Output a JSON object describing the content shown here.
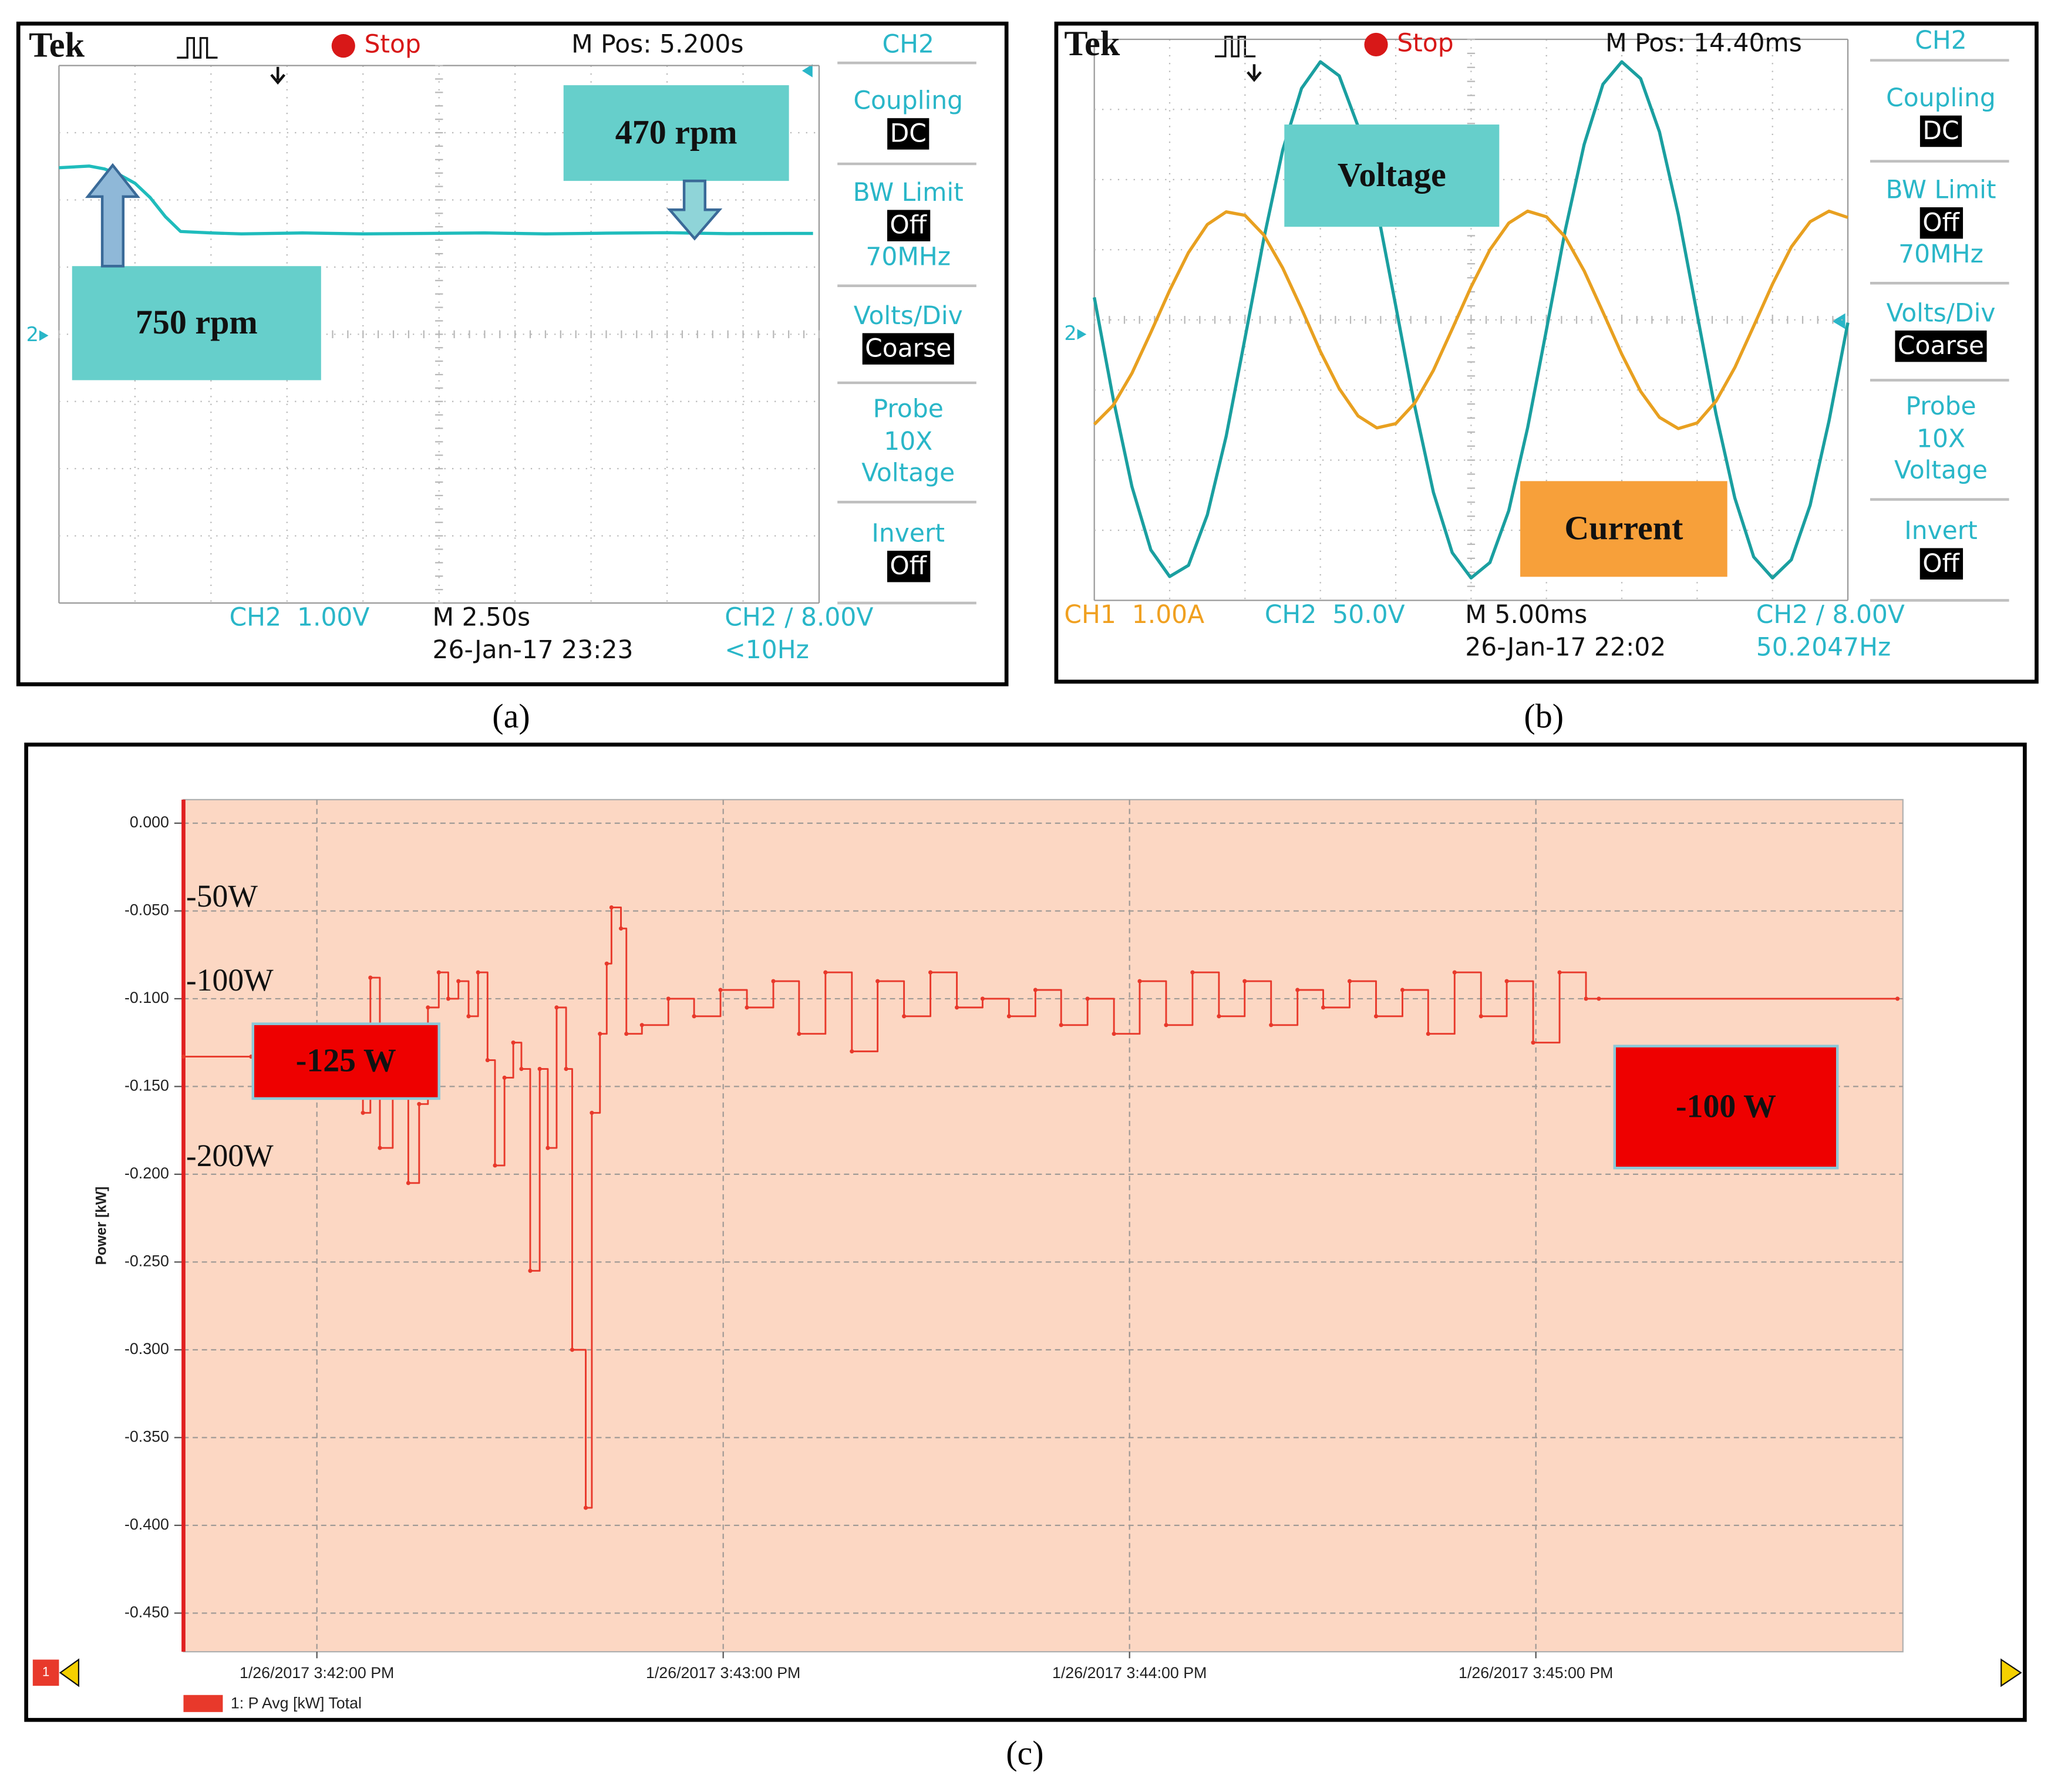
{
  "chart_data": [
    {
      "type": "line",
      "scope": {
        "brand": "Tek",
        "status": "Stop",
        "position": "M Pos: 5.200s",
        "menu": {
          "header": "CH2",
          "items": [
            {
              "label": "Coupling",
              "value": "DC",
              "boxed": true
            },
            {
              "label": "BW Limit",
              "value": "Off",
              "boxed": true,
              "extra": "70MHz"
            },
            {
              "label": "Volts/Div",
              "value": "Coarse",
              "boxed": true
            },
            {
              "label": "Probe",
              "value": "10X",
              "boxed": false,
              "extra": "Voltage"
            },
            {
              "label": "Invert",
              "value": "Off",
              "boxed": true
            }
          ]
        },
        "ground_marker": "2",
        "readouts": [
          {
            "text": "CH2  1.00V",
            "color": "#29b6c8"
          },
          {
            "text": "M 2.50s",
            "color": "#111111"
          },
          {
            "text": "CH2 ∕ 8.00V",
            "color": "#29b6c8"
          },
          {
            "text": "26-Jan-17 23:23",
            "color": "#111111"
          },
          {
            "text": "<10Hz",
            "color": "#29b6c8"
          }
        ]
      },
      "x": [
        0,
        1,
        1.5,
        2,
        2.5,
        3,
        3.5,
        4,
        5,
        6,
        8,
        10,
        12,
        14,
        16,
        18,
        20,
        22,
        24,
        24.8
      ],
      "xlim": [
        0,
        25
      ],
      "ylim": [
        -1078,
        1173
      ],
      "series": [
        {
          "color": "#1fbcbc",
          "values": [
            745,
            752,
            740,
            715,
            680,
            620,
            540,
            478,
            472,
            468,
            472,
            468,
            470,
            472,
            468,
            471,
            473,
            469,
            470,
            470
          ]
        }
      ],
      "annotations": [
        "750 rpm",
        "470 rpm"
      ],
      "annotation_color": "#66cfcb"
    },
    {
      "type": "line",
      "scope": {
        "brand": "Tek",
        "status": "Stop",
        "position": "M Pos: 14.40ms",
        "menu": {
          "header": "CH2",
          "items": [
            {
              "label": "Coupling",
              "value": "DC",
              "boxed": true
            },
            {
              "label": "BW Limit",
              "value": "Off",
              "boxed": true,
              "extra": "70MHz"
            },
            {
              "label": "Volts/Div",
              "value": "Coarse",
              "boxed": true
            },
            {
              "label": "Probe",
              "value": "10X",
              "boxed": false,
              "extra": "Voltage"
            },
            {
              "label": "Invert",
              "value": "Off",
              "boxed": true
            }
          ]
        },
        "ground_marker": "2",
        "readouts": [
          {
            "text": "CH1  1.00A",
            "color": "#f0a020"
          },
          {
            "text": "CH2  50.0V",
            "color": "#29b6c8"
          },
          {
            "text": "M 5.00ms",
            "color": "#111111"
          },
          {
            "text": "CH2 ∕ 8.00V",
            "color": "#29b6c8"
          },
          {
            "text": "26-Jan-17 22:02",
            "color": "#111111"
          },
          {
            "text": "50.2047Hz",
            "color": "#29b6c8"
          }
        ]
      },
      "x": [
        0,
        1.25,
        2.5,
        3.75,
        5,
        6.25,
        7.5,
        8.75,
        10,
        11.25,
        12.5,
        13.75,
        15,
        16.25,
        17.5,
        18.75,
        20,
        21.25,
        22.5,
        23.75,
        25,
        26.25,
        27.5,
        28.75,
        30,
        31.25,
        32.5,
        33.75,
        35,
        36.25,
        37.5,
        38.75,
        40,
        41.25,
        42.5,
        43.75,
        45,
        46.25,
        47.5,
        48.75,
        50
      ],
      "xlim": [
        0,
        50
      ],
      "ylim": [
        -200,
        200
      ],
      "y2lim": [
        -4,
        4
      ],
      "series": [
        {
          "name": "Voltage",
          "color": "#1a9fa0",
          "box_color": "#66cfcb",
          "values": [
            16,
            -56,
            -119,
            -164,
            -183,
            -175,
            -139,
            -83,
            -13,
            58,
            121,
            165,
            184,
            174,
            138,
            80,
            10,
            -61,
            -123,
            -166,
            -184,
            -173,
            -136,
            -77,
            -7,
            64,
            125,
            168,
            184,
            172,
            134,
            75,
            4,
            -67,
            -127,
            -169,
            -184,
            -171,
            -132,
            -72,
            -2
          ]
        },
        {
          "name": "Current",
          "color": "#e8a020",
          "box_color": "#f7a03a",
          "axis": "y2",
          "values": [
            -1.49,
            -1.22,
            -0.76,
            -0.18,
            0.42,
            0.96,
            1.36,
            1.54,
            1.49,
            1.21,
            0.74,
            0.16,
            -0.45,
            -0.98,
            -1.37,
            -1.54,
            -1.48,
            -1.19,
            -0.72,
            -0.13,
            0.47,
            1.0,
            1.38,
            1.55,
            1.47,
            1.18,
            0.7,
            0.11,
            -0.49,
            -1.02,
            -1.39,
            -1.55,
            -1.47,
            -1.16,
            -0.68,
            -0.09,
            0.51,
            1.04,
            1.4,
            1.55,
            1.46
          ]
        }
      ]
    },
    {
      "type": "line",
      "step": true,
      "grid": true,
      "ylabel": "Power [kW]",
      "x": [
        -19.7,
        -9.7,
        5.4,
        6.8,
        7.9,
        9.3,
        11.2,
        13.5,
        15.1,
        16.4,
        18.0,
        19.4,
        20.9,
        22.4,
        23.8,
        25.2,
        26.3,
        27.7,
        29.0,
        30.2,
        31.5,
        32.9,
        34.1,
        35.4,
        36.8,
        37.7,
        39.7,
        40.6,
        41.8,
        42.8,
        43.5,
        44.9,
        45.7,
        48.0,
        51.9,
        55.7,
        59.6,
        63.5,
        67.4,
        71.2,
        75.1,
        79.0,
        82.8,
        86.7,
        90.6,
        94.5,
        98.3,
        102.2,
        106.1,
        109.9,
        113.8,
        117.7,
        121.5,
        125.4,
        129.3,
        133.2,
        137.0,
        140.9,
        144.8,
        148.6,
        152.5,
        156.4,
        160.3,
        164.1,
        168.0,
        171.9,
        175.7,
        179.6,
        183.5,
        187.4,
        189.3,
        233.4
      ],
      "xlim": [
        -19.7,
        234.2
      ],
      "xticks": [
        {
          "value": 0,
          "label": "1/26/2017 3:42:00 PM"
        },
        {
          "value": 60,
          "label": "1/26/2017 3:43:00 PM"
        },
        {
          "value": 120,
          "label": "1/26/2017 3:44:00 PM"
        },
        {
          "value": 180,
          "label": "1/26/2017 3:45:00 PM"
        }
      ],
      "ylim": [
        -0.472,
        0.0134
      ],
      "yticks": [
        {
          "value": 0,
          "label": "0.000"
        },
        {
          "value": -0.05,
          "label": "-0.050"
        },
        {
          "value": -0.1,
          "label": "-0.100"
        },
        {
          "value": -0.15,
          "label": "-0.150"
        },
        {
          "value": -0.2,
          "label": "-0.200"
        },
        {
          "value": -0.25,
          "label": "-0.250"
        },
        {
          "value": -0.3,
          "label": "-0.300"
        },
        {
          "value": -0.35,
          "label": "-0.350"
        },
        {
          "value": -0.4,
          "label": "-0.400"
        },
        {
          "value": -0.45,
          "label": "-0.450"
        }
      ],
      "series": [
        {
          "name": "1: P Avg [kW] Total",
          "color": "#e8392b",
          "values": [
            -0.133,
            -0.133,
            -0.135,
            -0.165,
            -0.088,
            -0.185,
            -0.13,
            -0.205,
            -0.16,
            -0.105,
            -0.085,
            -0.1,
            -0.09,
            -0.11,
            -0.085,
            -0.135,
            -0.195,
            -0.145,
            -0.125,
            -0.14,
            -0.255,
            -0.14,
            -0.185,
            -0.105,
            -0.14,
            -0.3,
            -0.39,
            -0.165,
            -0.12,
            -0.08,
            -0.048,
            -0.06,
            -0.12,
            -0.115,
            -0.1,
            -0.11,
            -0.095,
            -0.105,
            -0.09,
            -0.12,
            -0.085,
            -0.13,
            -0.09,
            -0.11,
            -0.085,
            -0.105,
            -0.1,
            -0.11,
            -0.095,
            -0.115,
            -0.1,
            -0.12,
            -0.09,
            -0.115,
            -0.085,
            -0.11,
            -0.09,
            -0.115,
            -0.095,
            -0.105,
            -0.09,
            -0.11,
            -0.095,
            -0.12,
            -0.085,
            -0.11,
            -0.09,
            -0.125,
            -0.085,
            -0.1,
            -0.1,
            -0.1
          ]
        }
      ],
      "annotations": [
        "-50W",
        "-100W",
        "-200W"
      ],
      "callouts": [
        "-125 W",
        "-100 W"
      ],
      "callout_color": "#ee0000",
      "series_marker": "1"
    }
  ],
  "panel_labels": [
    "(a)",
    "(b)",
    "(c)"
  ]
}
